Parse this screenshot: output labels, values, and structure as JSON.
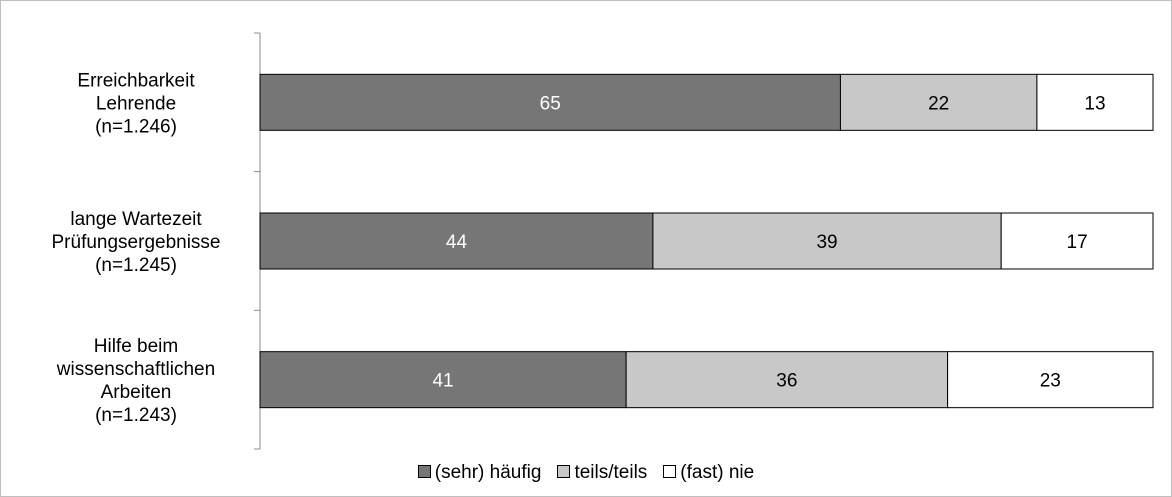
{
  "chart_data": {
    "type": "bar",
    "orientation": "horizontal",
    "stacked": true,
    "categories": [
      [
        "Erreichbarkeit",
        "Lehrende",
        "(n=1.246)"
      ],
      [
        "lange Wartezeit",
        "Prüfungsergebnisse",
        "(n=1.245)"
      ],
      [
        "Hilfe beim",
        "wissenschaftlichen",
        "Arbeiten",
        "(n=1.243)"
      ]
    ],
    "series": [
      {
        "name": "(sehr) häufig",
        "values": [
          65,
          44,
          41
        ],
        "color": "#767676",
        "label_color": "#ffffff"
      },
      {
        "name": "teils/teils",
        "values": [
          22,
          39,
          36
        ],
        "color": "#c8c8c8",
        "label_color": "#000000"
      },
      {
        "name": "(fast) nie",
        "values": [
          13,
          17,
          23
        ],
        "color": "#ffffff",
        "label_color": "#000000"
      }
    ],
    "xlim": [
      0,
      100
    ],
    "grid": false,
    "legend_position": "bottom"
  }
}
